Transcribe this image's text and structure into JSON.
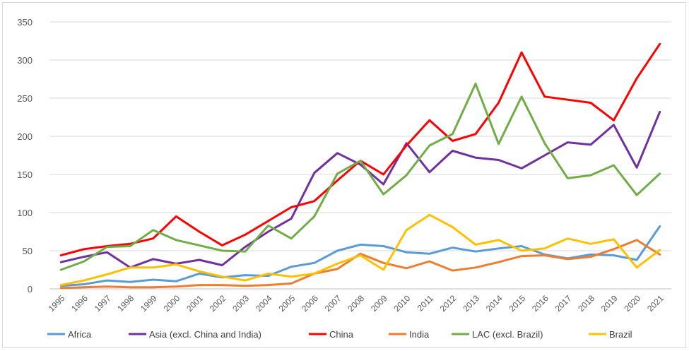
{
  "chart_data": {
    "type": "line",
    "title": "",
    "xlabel": "",
    "ylabel": "",
    "ylim": [
      0,
      350
    ],
    "yticks": [
      0,
      50,
      100,
      150,
      200,
      250,
      300,
      350
    ],
    "grid": "horizontal",
    "legend": "bottom",
    "x": [
      "1995",
      "1996",
      "1997",
      "1998",
      "1999",
      "2000",
      "2001",
      "2002",
      "2003",
      "2004",
      "2005",
      "2006",
      "2007",
      "2008",
      "2009",
      "2010",
      "2011",
      "2012",
      "2013",
      "2014",
      "2015",
      "2016",
      "2017",
      "2018",
      "2019",
      "2020",
      "2021"
    ],
    "series": [
      {
        "name": "Africa",
        "color": "#5b9bd5",
        "values": [
          4,
          6,
          11,
          9,
          12,
          10,
          20,
          15,
          18,
          17,
          29,
          34,
          50,
          58,
          56,
          48,
          46,
          54,
          49,
          53,
          56,
          45,
          40,
          45,
          44,
          38,
          82
        ]
      },
      {
        "name": "Asia (excl. China and India)",
        "color": "#7030a0",
        "values": [
          35,
          42,
          48,
          28,
          39,
          33,
          38,
          31,
          55,
          75,
          92,
          152,
          178,
          163,
          137,
          191,
          153,
          181,
          172,
          169,
          158,
          175,
          192,
          189,
          215,
          159,
          232
        ]
      },
      {
        "name": "China",
        "color": "#ff0000",
        "values": [
          44,
          52,
          56,
          59,
          66,
          95,
          75,
          57,
          71,
          89,
          107,
          115,
          142,
          168,
          150,
          188,
          221,
          194,
          203,
          244,
          310,
          252,
          248,
          244,
          221,
          276,
          321
        ]
      },
      {
        "name": "India",
        "color": "#ed7d31",
        "values": [
          1,
          2,
          3,
          2,
          2,
          3,
          5,
          5,
          4,
          5,
          7,
          20,
          26,
          46,
          34,
          27,
          36,
          24,
          28,
          35,
          43,
          44,
          39,
          42,
          52,
          64,
          45
        ]
      },
      {
        "name": "LAC (excl. Brazil)",
        "color": "#70ad47",
        "values": [
          25,
          36,
          55,
          56,
          77,
          64,
          57,
          50,
          49,
          83,
          66,
          95,
          151,
          168,
          124,
          149,
          188,
          203,
          269,
          190,
          252,
          191,
          145,
          149,
          162,
          123,
          151
        ]
      },
      {
        "name": "Brazil",
        "color": "#ffc000",
        "values": [
          5,
          11,
          19,
          28,
          28,
          32,
          23,
          16,
          11,
          20,
          16,
          20,
          33,
          44,
          25,
          77,
          97,
          81,
          58,
          64,
          50,
          53,
          66,
          59,
          65,
          28,
          51
        ]
      }
    ]
  }
}
